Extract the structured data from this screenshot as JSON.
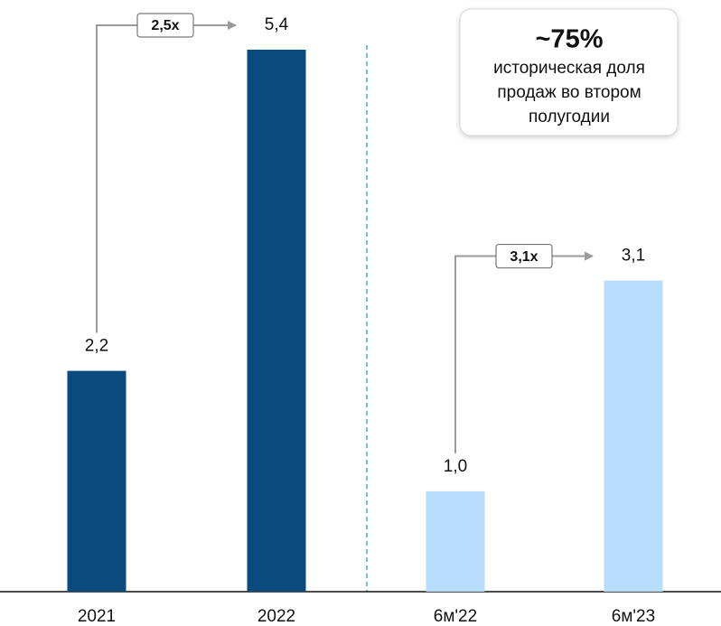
{
  "chart_data": {
    "type": "bar",
    "categories": [
      "2021",
      "2022",
      "6м'22",
      "6м'23"
    ],
    "values": [
      2.2,
      5.4,
      1.0,
      3.1
    ],
    "value_labels": [
      "2,2",
      "5,4",
      "1,0",
      "3,1"
    ],
    "colors": [
      "#0a4a7d",
      "#0a4a7d",
      "#b8dcfb",
      "#b8dcfb"
    ],
    "ratio_labels": [
      "2,5x",
      "3,1x"
    ],
    "callout": {
      "title": "~75%",
      "lines": [
        "историческая доля",
        "продаж во втором",
        "полугодии"
      ]
    }
  }
}
